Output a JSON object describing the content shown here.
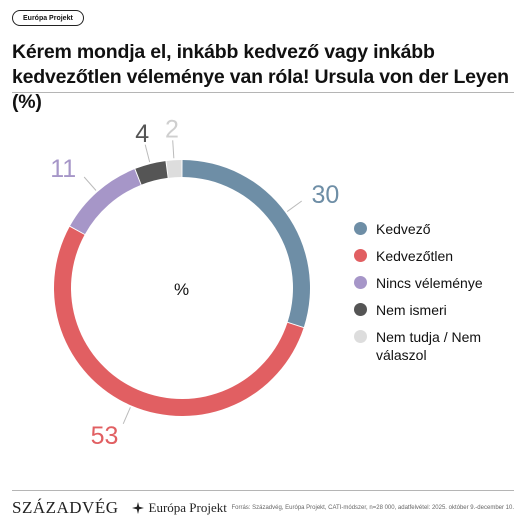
{
  "tag": "Európa Projekt",
  "chart_data": {
    "type": "pie",
    "title": "Kérem mondja el, inkább kedvező vagy inkább kedvezőtlen véleménye van róla! Ursula von der Leyen (%)",
    "center_label": "%",
    "categories": [
      "Kedvező",
      "Kedvezőtlen",
      "Nincs véleménye",
      "Nem ismeri",
      "Nem tudja / Nem válaszol"
    ],
    "values": [
      30,
      53,
      11,
      4,
      2
    ],
    "colors": [
      "#6e8ea6",
      "#e15f62",
      "#a696c8",
      "#555555",
      "#dddddd"
    ],
    "label_colors": [
      "#6e8ea6",
      "#e15f62",
      "#a696c8",
      "#555555",
      "#cfcfcf"
    ],
    "legend_position": "right"
  },
  "footer": {
    "logo_szazadveg": "SZÁZADVÉG",
    "logo_europa": "Európa Projekt",
    "source": "Forrás: Századvég, Európa Projekt, CATI-módszer, n=28 000, adatfelvétel: 2025. október 9.-december 10."
  }
}
